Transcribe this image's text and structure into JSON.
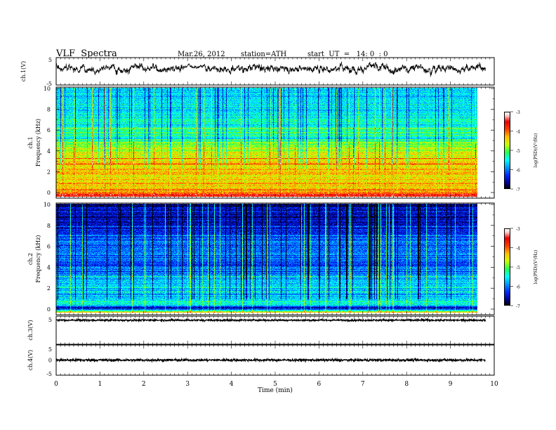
{
  "header": {
    "title": "VLF  Spectra",
    "date": "Mar.26, 2012",
    "station": "station=ATH",
    "start": "start  UT  =   14: 0  : 0"
  },
  "chart_data": [
    {
      "type": "line",
      "name": "ch1-waveform",
      "ylabel": "ch.1(V)",
      "ylim": [
        -5,
        5
      ],
      "yticks": [
        "5",
        "-5"
      ],
      "description_values": "noisy waveform oscillating roughly between -2 and 4 V"
    },
    {
      "type": "heatmap",
      "name": "ch1-spectrogram",
      "ylabel_top": "ch.1",
      "ylabel": "Frequency  (kHz)",
      "ylim": [
        0,
        10
      ],
      "yticks": [
        "0",
        "2",
        "4",
        "6",
        "8",
        "10"
      ],
      "colorbar": {
        "label": "log(PSD)(V²/Hz)",
        "ticks": [
          "-3",
          "-4",
          "-5",
          "-6",
          "-7"
        ],
        "range": [
          -7,
          -3
        ],
        "colors": [
          "#000000",
          "#0000ff",
          "#00ffff",
          "#00ff00",
          "#ffff00",
          "#ff0000",
          "#ffffff"
        ]
      },
      "levels_by_khz": [
        [
          0.0,
          -3.2
        ],
        [
          0.4,
          -4.2
        ],
        [
          1.0,
          -4.3
        ],
        [
          1.5,
          -4.5
        ],
        [
          2.5,
          -4.4
        ],
        [
          3.5,
          -4.4
        ],
        [
          4.5,
          -4.8
        ],
        [
          5.0,
          -5.0
        ],
        [
          5.5,
          -5.6
        ],
        [
          6.0,
          -5.2
        ],
        [
          6.5,
          -5.4
        ],
        [
          7.5,
          -5.5
        ],
        [
          8.5,
          -5.6
        ],
        [
          10.0,
          -5.7
        ]
      ]
    },
    {
      "type": "heatmap",
      "name": "ch2-spectrogram",
      "ylabel_top": "ch.2",
      "ylabel": "Frequency  (kHz)",
      "ylim": [
        0,
        10
      ],
      "yticks": [
        "0",
        "2",
        "4",
        "6",
        "8",
        "10"
      ],
      "colorbar": {
        "label": "log(PSD)(V²/Hz)",
        "ticks": [
          "-3",
          "-4",
          "-5",
          "-6",
          "-7"
        ],
        "range": [
          -7,
          -3
        ]
      },
      "levels_by_khz": [
        [
          0.0,
          -4.5
        ],
        [
          0.4,
          -6.6
        ],
        [
          0.8,
          -5.3
        ],
        [
          1.5,
          -5.8
        ],
        [
          2.5,
          -5.6
        ],
        [
          3.5,
          -6.0
        ],
        [
          4.5,
          -6.2
        ],
        [
          5.5,
          -6.0
        ],
        [
          6.5,
          -6.1
        ],
        [
          7.5,
          -6.4
        ],
        [
          8.5,
          -6.6
        ],
        [
          10.0,
          -6.7
        ]
      ]
    },
    {
      "type": "line",
      "name": "ch3-waveform",
      "ylabel": "ch.3(V)",
      "ylim": [
        -5,
        5
      ],
      "yticks": [
        "5"
      ],
      "description_values": "near-constant level close to 5 V with small noise"
    },
    {
      "type": "line",
      "name": "ch4-waveform",
      "ylabel": "ch.4(V)",
      "ylim": [
        -5,
        5
      ],
      "yticks": [
        "5",
        "0",
        "-5"
      ],
      "description_values": "near-constant level close to 0 V with small noise"
    }
  ],
  "xaxis": {
    "xlabel": "Time  (min)",
    "xlim": [
      0,
      10
    ],
    "ticks": [
      "0",
      "1",
      "2",
      "3",
      "4",
      "5",
      "6",
      "7",
      "8",
      "9",
      "10"
    ],
    "data_end": 9.8
  }
}
